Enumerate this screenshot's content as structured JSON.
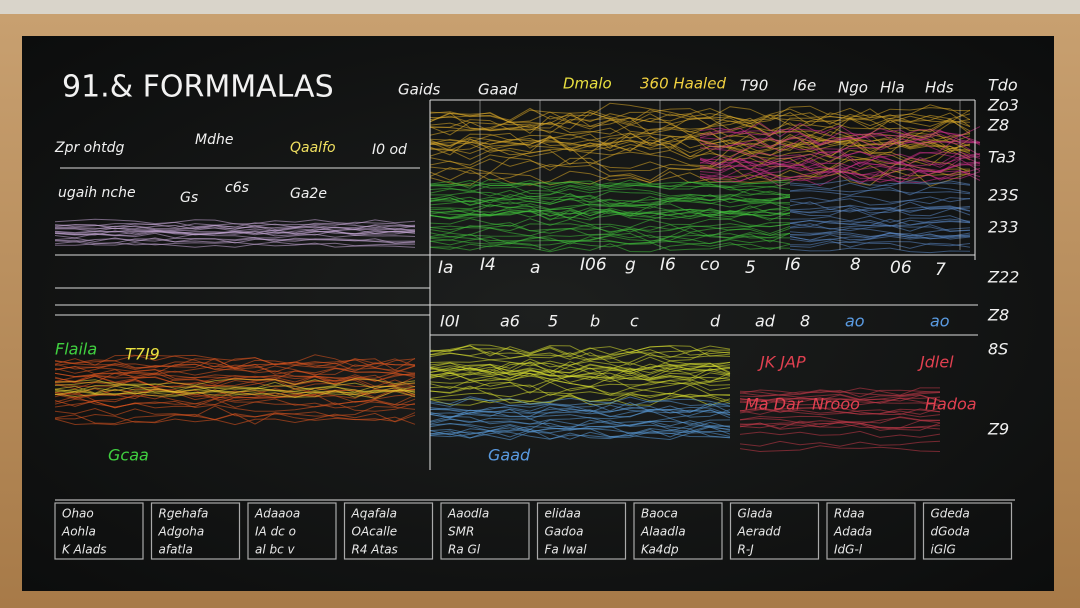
{
  "title": "91.& FORMMALAS",
  "header_labels": [
    "Gaids",
    "Gaad",
    "Dmalo",
    "360 Haaled",
    "T90",
    "I6e",
    "Ngo",
    "Hla",
    "Hds"
  ],
  "right_labels": [
    "Tdo",
    "Zo3",
    "Z8",
    "Ta3",
    "23S",
    "233",
    "Z22",
    "Z8",
    "8S",
    "Z9"
  ],
  "left_labels": [
    "Zpr ohtdg",
    "Mdhe",
    "Qaalfo",
    "I0 od",
    "ugaih nche",
    "Gs",
    "c6s",
    "Ga2e"
  ],
  "scale_labels": [
    "Ia",
    "I4",
    "a",
    "I06",
    "g",
    "I6",
    "co",
    "5",
    "I6",
    "8",
    "06",
    "7"
  ],
  "row_labels": [
    "I0I",
    "a6",
    "5",
    "b",
    "c",
    "d",
    "ad",
    "8",
    "ao",
    "ao"
  ],
  "lower_labels": [
    "Flaila",
    "T7I9",
    "Gcaa",
    "JK JAP",
    "Jdlel",
    "Gaad",
    "Ma Dar",
    "Nrooo",
    "Hadoa"
  ],
  "bottom_boxes": [
    [
      "Ohao",
      "Aohla",
      "K Alads"
    ],
    [
      "Rgehafa",
      "Adgoha",
      "afatla"
    ],
    [
      "Adaaoa",
      "IA dc o",
      "al bc v"
    ],
    [
      "Aqafala",
      "OAcalle",
      "R4 Atas"
    ],
    [
      "Aaodla",
      "SMR",
      "Ra Gl"
    ],
    [
      "elidaa",
      "Gadoa",
      "Fa Iwal"
    ],
    [
      "Baoca",
      "Alaadla",
      "Ka4dp"
    ],
    [
      "Glada",
      "Aeradd",
      "R-J"
    ],
    [
      "Rdaa",
      "Adada",
      "IdG-l"
    ],
    [
      "Gdeda",
      "dGoda",
      "iGlG"
    ]
  ]
}
